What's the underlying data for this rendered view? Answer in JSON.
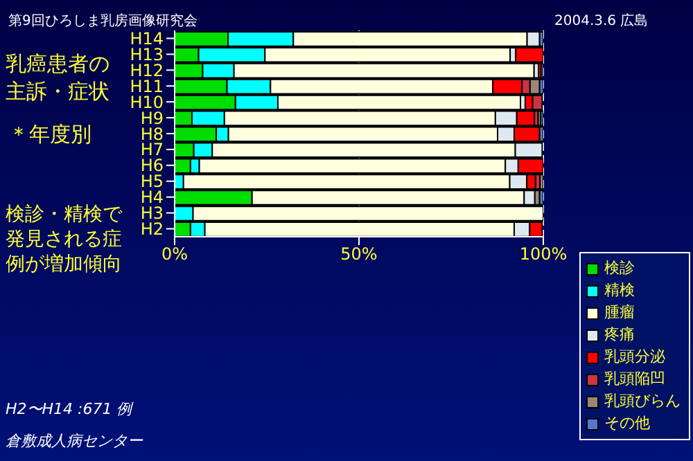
{
  "chart_data": {
    "type": "bar",
    "orientation": "horizontal",
    "stacked": true,
    "title": "乳癌患者の主訴・症状",
    "subtitle": "＊年度別",
    "annotations": [
      "第9回ひろしま乳房画像研究会",
      "2004.3.6 広島",
      "検診・精検で発見される症例が増加傾向",
      "H2〜H14 :671 例",
      "倉敷成人病センター"
    ],
    "categories": [
      "H14",
      "H13",
      "H12",
      "H11",
      "H10",
      "H9",
      "H8",
      "H7",
      "H6",
      "H5",
      "H4",
      "H3",
      "H2"
    ],
    "series": [
      {
        "name": "検診",
        "color": "#00dd00",
        "values": [
          14.5,
          6.5,
          7.6,
          14.2,
          16.5,
          4.7,
          11.3,
          5.2,
          4.3,
          0,
          21,
          0,
          4.3
        ]
      },
      {
        "name": "精検",
        "color": "#00ffff",
        "values": [
          17.7,
          18,
          8.5,
          11.8,
          11.5,
          8.8,
          3.3,
          5,
          2.4,
          2.4,
          0,
          5,
          3.9
        ]
      },
      {
        "name": "腫瘤",
        "color": "#ffffdd",
        "values": [
          63.4,
          66.5,
          81.4,
          60.3,
          65.8,
          73.5,
          73,
          82.2,
          83,
          88.5,
          73.8,
          95,
          83.9
        ]
      },
      {
        "name": "疼痛",
        "color": "#dde8f0",
        "values": [
          3.4,
          1.5,
          1.2,
          0,
          1.3,
          5.8,
          4.5,
          7.3,
          3.5,
          4.6,
          2.9,
          0,
          4.2
        ]
      },
      {
        "name": "乳頭分泌",
        "color": "#ff0000",
        "values": [
          0,
          7.5,
          0.7,
          7.9,
          2,
          4.8,
          6.9,
          0,
          6.8,
          2.4,
          0,
          0,
          3.4
        ]
      },
      {
        "name": "乳頭陥凹",
        "color": "#cc3344",
        "values": [
          0,
          0,
          0,
          2.2,
          2.6,
          1,
          0,
          0,
          0,
          1.2,
          0,
          0,
          0
        ]
      },
      {
        "name": "乳頭びらん",
        "color": "#998877",
        "values": [
          0,
          0,
          0,
          2.6,
          0,
          0.7,
          0,
          0,
          0,
          0.9,
          1.3,
          0,
          0
        ]
      },
      {
        "name": "その他",
        "color": "#5577cc",
        "values": [
          1,
          0,
          0.6,
          1,
          0,
          0.7,
          1,
          0,
          0,
          0,
          1,
          0,
          0
        ]
      }
    ],
    "xlim": [
      0,
      100
    ],
    "xticks": [
      {
        "value": 0,
        "label": "0%"
      },
      {
        "value": 50,
        "label": "50%"
      },
      {
        "value": 100,
        "label": "100%"
      }
    ],
    "grid": "x",
    "legend": "bottom right"
  }
}
